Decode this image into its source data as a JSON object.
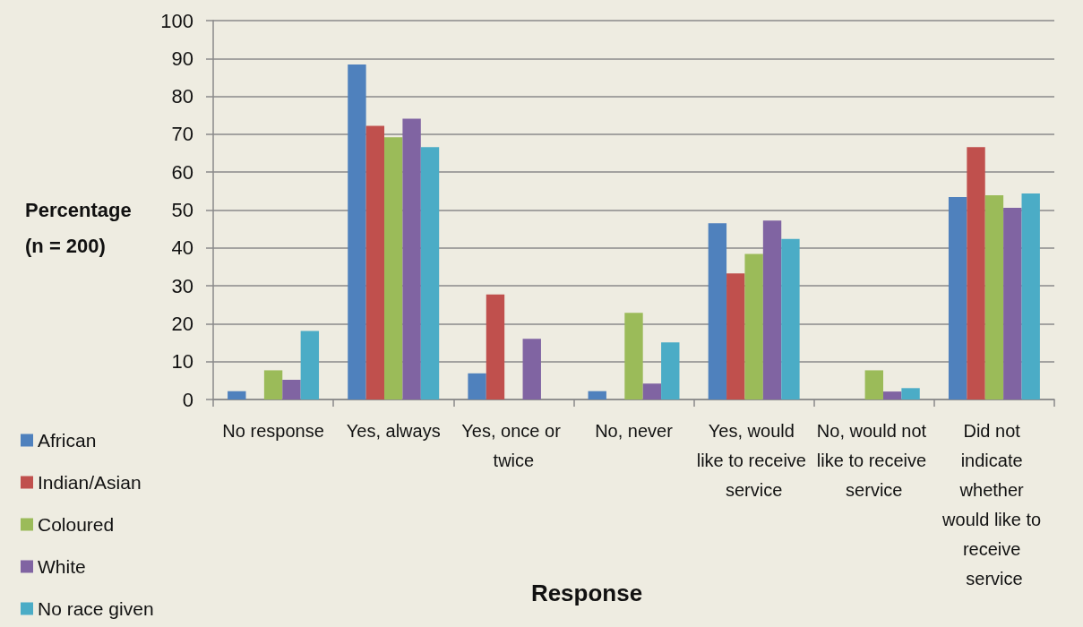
{
  "chart_data": {
    "type": "bar",
    "xlabel": "Response",
    "ylabel": "Percentage (n = 200)",
    "categories": [
      "No response",
      "Yes, always",
      "Yes, once or twice",
      "No, never",
      "Yes, would like to receive service",
      "No, would not like to receive service",
      "Did not indicate whether would like to receive service"
    ],
    "series": [
      {
        "name": "African",
        "color": "#4f81bd",
        "values": [
          2.2,
          88.4,
          6.9,
          2.2,
          46.5,
          0,
          53.4
        ]
      },
      {
        "name": "Indian/Asian",
        "color": "#c0504d",
        "values": [
          0,
          72.2,
          27.7,
          0,
          33.3,
          0,
          66.6
        ]
      },
      {
        "name": "Coloured",
        "color": "#9bbb59",
        "values": [
          7.7,
          69.2,
          0,
          22.9,
          38.4,
          7.7,
          53.9
        ]
      },
      {
        "name": "White",
        "color": "#8064a2",
        "values": [
          5.2,
          74.1,
          16.0,
          4.2,
          47.2,
          2.1,
          50.6
        ]
      },
      {
        "name": "No race given",
        "color": "#4bacc6",
        "values": [
          18.1,
          66.6,
          0,
          15.1,
          42.4,
          3.0,
          54.4
        ]
      }
    ],
    "ylim": [
      0,
      100
    ],
    "yticks": [
      0,
      10,
      20,
      30,
      40,
      50,
      60,
      70,
      80,
      90,
      100
    ],
    "grid": "y",
    "legend": "bottom left"
  }
}
